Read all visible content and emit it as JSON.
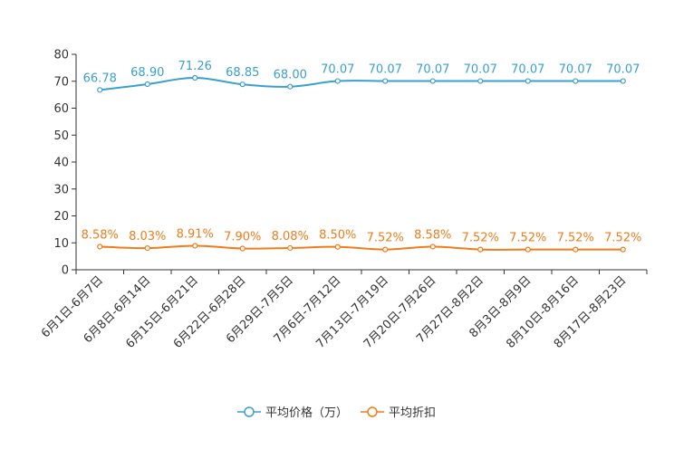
{
  "chart_data": {
    "type": "line",
    "title": "",
    "xlabel": "",
    "ylabel": "",
    "ylim": [
      0,
      80
    ],
    "yticks": [
      0,
      10,
      20,
      30,
      40,
      50,
      60,
      70,
      80
    ],
    "grid": false,
    "legend_position": "bottom-center",
    "categories": [
      "6月1日-6月7日",
      "6月8日-6月14日",
      "6月15日-6月21日",
      "6月22日-6月28日",
      "6月29日-7月5日",
      "7月6日-7月12日",
      "7月13日-7月19日",
      "7月20日-7月26日",
      "7月27日-8月2日",
      "8月3日-8月9日",
      "8月10日-8月16日",
      "8月17日-8月23日"
    ],
    "series": [
      {
        "name": "平均价格（万）",
        "color": "#3a9fd0",
        "values": [
          66.78,
          68.9,
          71.26,
          68.85,
          68.0,
          70.07,
          70.07,
          70.07,
          70.07,
          70.07,
          70.07,
          70.07
        ],
        "labels": [
          "66.78",
          "68.90",
          "71.26",
          "68.85",
          "68.00",
          "70.07",
          "70.07",
          "70.07",
          "70.07",
          "70.07",
          "70.07",
          "70.07"
        ]
      },
      {
        "name": "平均折扣",
        "color": "#f07c1b",
        "values": [
          8.58,
          8.03,
          8.91,
          7.9,
          8.08,
          8.5,
          7.52,
          8.58,
          7.52,
          7.52,
          7.52,
          7.52
        ],
        "labels": [
          "8.58%",
          "8.03%",
          "8.91%",
          "7.90%",
          "8.08%",
          "8.50%",
          "7.52%",
          "8.58%",
          "7.52%",
          "7.52%",
          "7.52%",
          "7.52%"
        ]
      }
    ]
  }
}
